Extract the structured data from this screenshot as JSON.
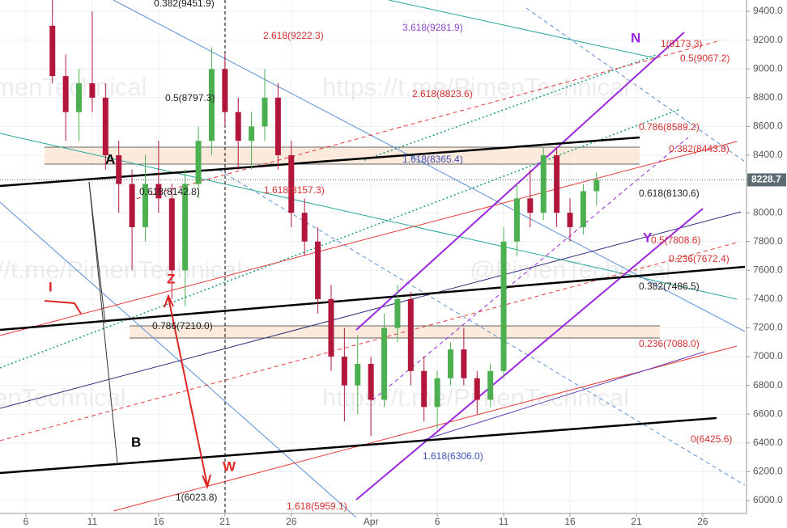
{
  "chart_data": {
    "type": "candlestick",
    "x": [
      8,
      9,
      10,
      11,
      12,
      13,
      14,
      15,
      16,
      17,
      18,
      19,
      20,
      21,
      22,
      23,
      24,
      25,
      26,
      27,
      28,
      29,
      30,
      31,
      32,
      33,
      34,
      35,
      36,
      37,
      38,
      39,
      40,
      41,
      42,
      43,
      44,
      45,
      46,
      47,
      48,
      49
    ],
    "open": [
      9300,
      8950,
      8700,
      8900,
      8800,
      8400,
      8200,
      7900,
      8200,
      8100,
      7600,
      8200,
      8500,
      9000,
      8700,
      8500,
      8600,
      8800,
      8400,
      8000,
      7800,
      7400,
      7000,
      6800,
      6950,
      6700,
      7200,
      7400,
      6900,
      6650,
      6850,
      7050,
      6850,
      6700,
      6900,
      7800,
      8100,
      8000,
      8400,
      8000,
      7900,
      8150
    ],
    "high": [
      9500,
      9100,
      9000,
      9400,
      8900,
      8500,
      8300,
      8400,
      8500,
      8200,
      8300,
      8600,
      9150,
      9100,
      8800,
      8700,
      9000,
      8900,
      8500,
      8100,
      7900,
      7500,
      7200,
      7150,
      7000,
      7300,
      7500,
      7450,
      7000,
      6900,
      7100,
      7200,
      6900,
      6950,
      7900,
      8200,
      8300,
      8450,
      8450,
      8100,
      8200,
      8280
    ],
    "low": [
      8900,
      8500,
      8500,
      8700,
      8300,
      8000,
      7600,
      7800,
      8000,
      7400,
      7350,
      8100,
      8400,
      8600,
      8300,
      8300,
      8500,
      8300,
      7900,
      7700,
      7300,
      6900,
      6550,
      6600,
      6450,
      6650,
      7100,
      6800,
      6550,
      6500,
      6800,
      6800,
      6600,
      6650,
      6850,
      7700,
      7900,
      7950,
      7900,
      7800,
      7850,
      8050
    ],
    "close": [
      8950,
      8700,
      8900,
      8800,
      8400,
      8200,
      7900,
      8200,
      8100,
      7600,
      8200,
      8500,
      9000,
      8700,
      8500,
      8600,
      8800,
      8400,
      8000,
      7800,
      7400,
      7000,
      6800,
      6950,
      6700,
      7200,
      7400,
      6900,
      6650,
      6850,
      7050,
      6850,
      6700,
      6900,
      7800,
      8100,
      8000,
      8400,
      8000,
      7900,
      8150,
      8228.7
    ],
    "up_color": "#4caf50",
    "down_color": "#b2173b",
    "last_price": 8228.7,
    "xlim": [
      4.05,
      60.3
    ],
    "xticks": [
      6,
      11,
      16,
      21,
      26,
      {
        "value": 32,
        "label": "Apr"
      },
      {
        "value": 37,
        "label": "6"
      },
      {
        "value": 42,
        "label": "11"
      },
      {
        "value": 47,
        "label": "16"
      },
      {
        "value": 52,
        "label": "21"
      },
      {
        "value": 57,
        "label": "26"
      }
    ],
    "ylim": [
      5910,
      9479
    ],
    "yticks": [
      {
        "value": 6000,
        "label": "6000.0"
      },
      {
        "value": 6200,
        "label": "6200.0"
      },
      {
        "value": 6400,
        "label": "6400.0"
      },
      {
        "value": 6600,
        "label": "6600.0"
      },
      {
        "value": 6800,
        "label": "6800.0"
      },
      {
        "value": 7000,
        "label": "7000.0"
      },
      {
        "value": 7200,
        "label": "7200.0"
      },
      {
        "value": 7400,
        "label": "7400.0"
      },
      {
        "value": 7600,
        "label": "7600.0"
      },
      {
        "value": 7800,
        "label": "7800.0"
      },
      {
        "value": 8000,
        "label": "8000.0"
      },
      {
        "value": 8200,
        "label": "8200.0"
      },
      {
        "value": 8400,
        "label": "8400.0"
      },
      {
        "value": 8600,
        "label": "8600.0"
      },
      {
        "value": 8800,
        "label": "8800.0"
      },
      {
        "value": 9000,
        "label": "9000.0"
      },
      {
        "value": 9200,
        "label": "9200.0"
      },
      {
        "value": 9400,
        "label": "9400.0"
      }
    ],
    "grid": true,
    "annotations": [
      "0.382(9451.9)",
      "2.618(9222.3)",
      "3.618(9281.9)",
      "1(9173.3)",
      "0.5(9067.2)",
      "0.5(8797.3)",
      "2.618(8823.6)",
      "0.786(8589.2)",
      "0.382(8443.8)",
      "1.618(8365.4)",
      "0.618(8142.8)",
      "1.618(8157.3)",
      "0.618(8130.6)",
      "0.5(7808.6)",
      "0.236(7672.4)",
      "0.382(7486.5)",
      "0.786(7210.0)",
      "0.236(7088.0)",
      "0(6425.6)",
      "1.618(6306.0)",
      "1(6023.8)",
      "1.618(5959.1)"
    ],
    "wave_labels": [
      "A",
      "B",
      "Z",
      "W",
      "N",
      "Y",
      "I"
    ],
    "watermarks": [
      "menTechnical",
      "https://t.me/PimenTechnical",
      "//t.me/PimenTechnical",
      "@PimenTechnical",
      "enTechnical",
      "https://t.me/PimenTechnical"
    ]
  }
}
